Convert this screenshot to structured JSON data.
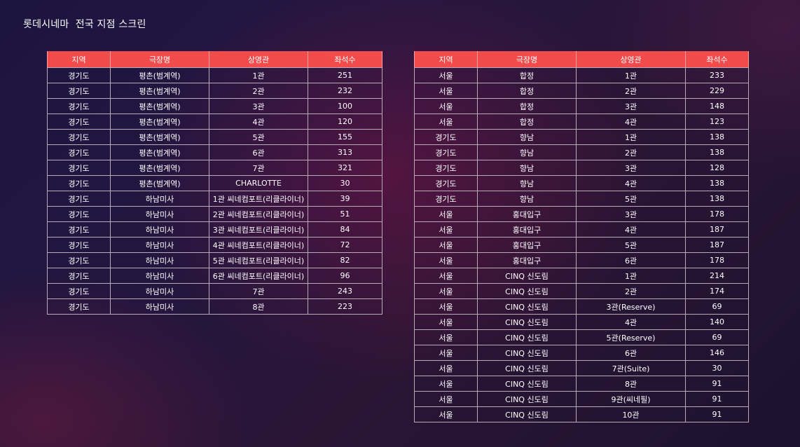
{
  "title": "롯데시네마  전국 지점 스크린",
  "headers": [
    "지역",
    "극장명",
    "상영관",
    "좌석수"
  ],
  "left_table": [
    [
      "경기도",
      "평촌(범계역)",
      "1관",
      "251"
    ],
    [
      "경기도",
      "평촌(범계역)",
      "2관",
      "232"
    ],
    [
      "경기도",
      "평촌(범계역)",
      "3관",
      "100"
    ],
    [
      "경기도",
      "평촌(범계역)",
      "4관",
      "120"
    ],
    [
      "경기도",
      "평촌(범계역)",
      "5관",
      "155"
    ],
    [
      "경기도",
      "평촌(범계역)",
      "6관",
      "313"
    ],
    [
      "경기도",
      "평촌(범계역)",
      "7관",
      "321"
    ],
    [
      "경기도",
      "평촌(범계역)",
      "CHARLOTTE",
      "30"
    ],
    [
      "경기도",
      "하남미사",
      "1관 씨네컴포트(리클라이너)",
      "39"
    ],
    [
      "경기도",
      "하남미사",
      "2관 씨네컴포트(리클라이너)",
      "51"
    ],
    [
      "경기도",
      "하남미사",
      "3관 씨네컴포트(리클라이너)",
      "84"
    ],
    [
      "경기도",
      "하남미사",
      "4관 씨네컴포트(리클라이너)",
      "72"
    ],
    [
      "경기도",
      "하남미사",
      "5관 씨네컴포트(리클라이너)",
      "82"
    ],
    [
      "경기도",
      "하남미사",
      "6관 씨네컴포트(리클라이너)",
      "96"
    ],
    [
      "경기도",
      "하남미사",
      "7관",
      "243"
    ],
    [
      "경기도",
      "하남미사",
      "8관",
      "223"
    ]
  ],
  "right_table": [
    [
      "서울",
      "합정",
      "1관",
      "233"
    ],
    [
      "서울",
      "합정",
      "2관",
      "229"
    ],
    [
      "서울",
      "합정",
      "3관",
      "148"
    ],
    [
      "서울",
      "합정",
      "4관",
      "123"
    ],
    [
      "경기도",
      "향남",
      "1관",
      "138"
    ],
    [
      "경기도",
      "향남",
      "2관",
      "138"
    ],
    [
      "경기도",
      "향남",
      "3관",
      "128"
    ],
    [
      "경기도",
      "향남",
      "4관",
      "138"
    ],
    [
      "경기도",
      "향남",
      "5관",
      "138"
    ],
    [
      "서울",
      "홍대입구",
      "3관",
      "178"
    ],
    [
      "서울",
      "홍대입구",
      "4관",
      "187"
    ],
    [
      "서울",
      "홍대입구",
      "5관",
      "187"
    ],
    [
      "서울",
      "홍대입구",
      "6관",
      "178"
    ],
    [
      "서울",
      "CINQ 신도림",
      "1관",
      "214"
    ],
    [
      "서울",
      "CINQ 신도림",
      "2관",
      "174"
    ],
    [
      "서울",
      "CINQ 신도림",
      "3관(Reserve)",
      "69"
    ],
    [
      "서울",
      "CINQ 신도림",
      "4관",
      "140"
    ],
    [
      "서울",
      "CINQ 신도림",
      "5관(Reserve)",
      "69"
    ],
    [
      "서울",
      "CINQ 신도림",
      "6관",
      "146"
    ],
    [
      "서울",
      "CINQ 신도림",
      "7관(Suite)",
      "30"
    ],
    [
      "서울",
      "CINQ 신도림",
      "8관",
      "91"
    ],
    [
      "서울",
      "CINQ 신도림",
      "9관(씨네필)",
      "91"
    ],
    [
      "서울",
      "CINQ 신도림",
      "10관",
      "91"
    ]
  ]
}
